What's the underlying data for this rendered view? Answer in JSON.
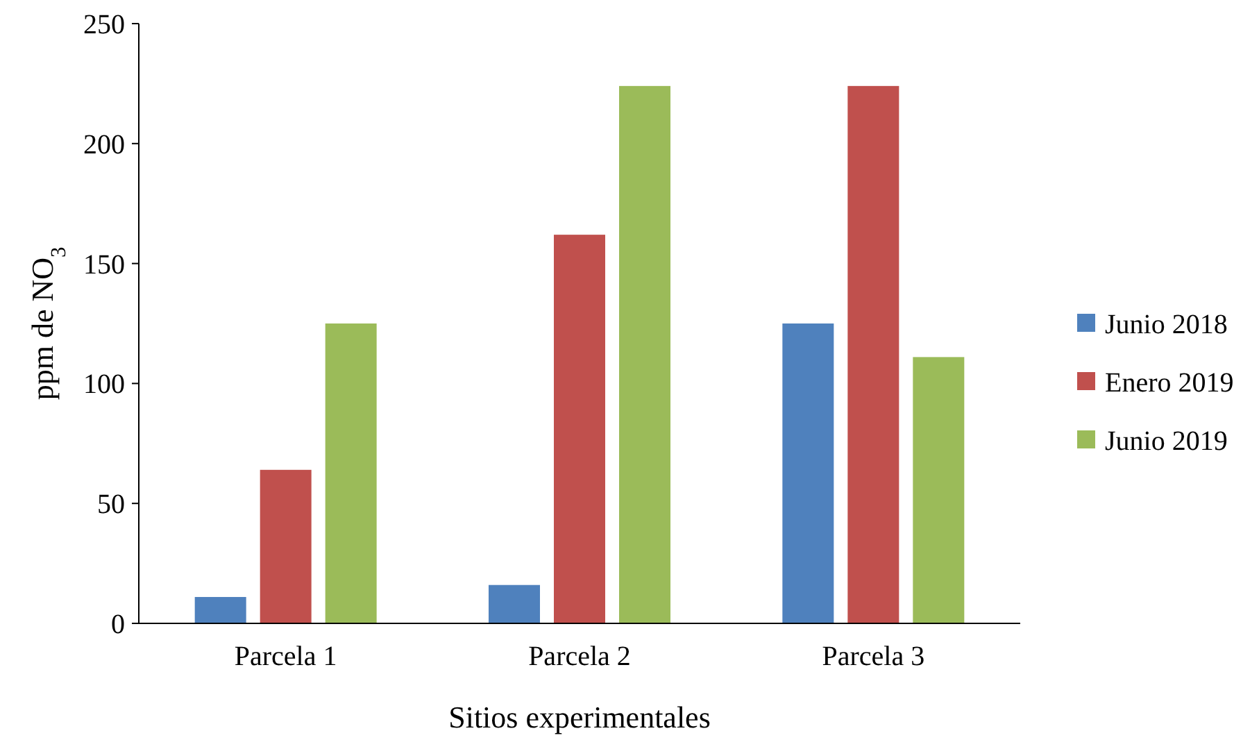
{
  "chart_data": {
    "type": "bar",
    "xlabel": "Sitios experimentales",
    "ylabel": "ppm de NO$_{3}$",
    "categories": [
      "Parcela 1",
      "Parcela 2",
      "Parcela 3"
    ],
    "series": [
      {
        "name": "Junio 2018",
        "color": "#4f81bd",
        "values": [
          11,
          16,
          125
        ]
      },
      {
        "name": "Enero 2019",
        "color": "#c0504d",
        "values": [
          64,
          162,
          224
        ]
      },
      {
        "name": "Junio 2019",
        "color": "#9bbb59",
        "values": [
          125,
          224,
          111
        ]
      }
    ],
    "ylim": [
      0,
      250
    ],
    "yticks": [
      0,
      50,
      100,
      150,
      200,
      250
    ],
    "grid": false,
    "legend": "right"
  }
}
